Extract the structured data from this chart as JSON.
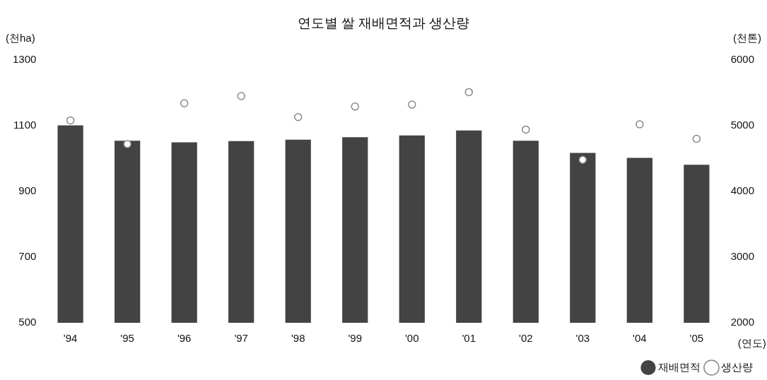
{
  "chart_data": {
    "type": "bar",
    "title": "연도별 쌀 재배면적과 생산량",
    "xlabel": "(연도)",
    "ylabel": "(천ha)",
    "y2label": "(천톤)",
    "categories": [
      "'94",
      "'95",
      "'96",
      "'97",
      "'98",
      "'99",
      "'00",
      "'01",
      "'02",
      "'03",
      "'04",
      "'05"
    ],
    "series": [
      {
        "name": "재배면적",
        "color": "#222222",
        "values": [
          1101,
          1054,
          1049,
          1053,
          1057,
          1065,
          1070,
          1085,
          1054,
          1017,
          1002,
          981
        ]
      },
      {
        "name": "생산량",
        "type": "scatter",
        "axis": "y2",
        "color": "#888888",
        "values": [
          5080,
          4720,
          5340,
          5450,
          5130,
          5290,
          5320,
          5510,
          4940,
          4480,
          5020,
          4800
        ]
      }
    ],
    "ylim": [
      500,
      1300
    ],
    "yticks": [
      500,
      700,
      900,
      1100,
      1300
    ],
    "y2lim": [
      2000,
      6000
    ],
    "y2ticks": [
      2000,
      3000,
      4000,
      5000,
      6000
    ],
    "grid": false,
    "legend": "bottom right",
    "marker": "circle"
  }
}
